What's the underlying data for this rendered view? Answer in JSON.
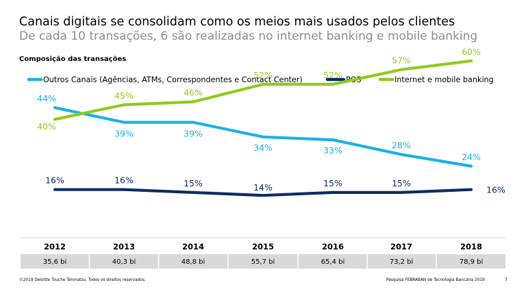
{
  "header": {
    "title": "Canais digitais se consolidam como os meios mais usados pelos clientes",
    "subtitle": "De cada 10 transações, 6 são realizadas no internet banking e mobile banking",
    "section_label": "Composição das transações"
  },
  "chart_data": {
    "type": "line",
    "x": [
      "2012",
      "2013",
      "2014",
      "2015",
      "2016",
      "2017",
      "2018"
    ],
    "ylim": [
      0,
      70
    ],
    "grid": false,
    "legend_position": "top",
    "series": [
      {
        "name": "Outros Canais (Agências, ATMs, Correspondentes e Contact Center)",
        "values": [
          44,
          39,
          39,
          34,
          33,
          28,
          24
        ],
        "labels": [
          "44%",
          "39%",
          "39%",
          "34%",
          "33%",
          "28%",
          "24%"
        ],
        "color": "#1ab0e8"
      },
      {
        "name": "POS",
        "values": [
          16,
          16,
          15,
          14,
          15,
          15,
          16
        ],
        "labels": [
          "16%",
          "16%",
          "15%",
          "14%",
          "15%",
          "15%",
          "16%"
        ],
        "color": "#0d2c63"
      },
      {
        "name": "Internet e mobile banking",
        "values": [
          40,
          45,
          46,
          52,
          52,
          57,
          60
        ],
        "labels": [
          "40%",
          "45%",
          "46%",
          "52%",
          "52%",
          "57%",
          "60%"
        ],
        "color": "#8fcb1a"
      }
    ],
    "volumes": [
      "35,6 bi",
      "40,3 bi",
      "48,8 bi",
      "55,7 bi",
      "65,4 bi",
      "73,2 bi",
      "78,9 bi"
    ]
  },
  "footer": {
    "copyright": "©2019 Deloitte Touche Tohmatsu. Todos os direitos reservados.",
    "source": "Pesquisa FEBRABAN de Tecnologia Bancária 2019",
    "page": "7"
  }
}
